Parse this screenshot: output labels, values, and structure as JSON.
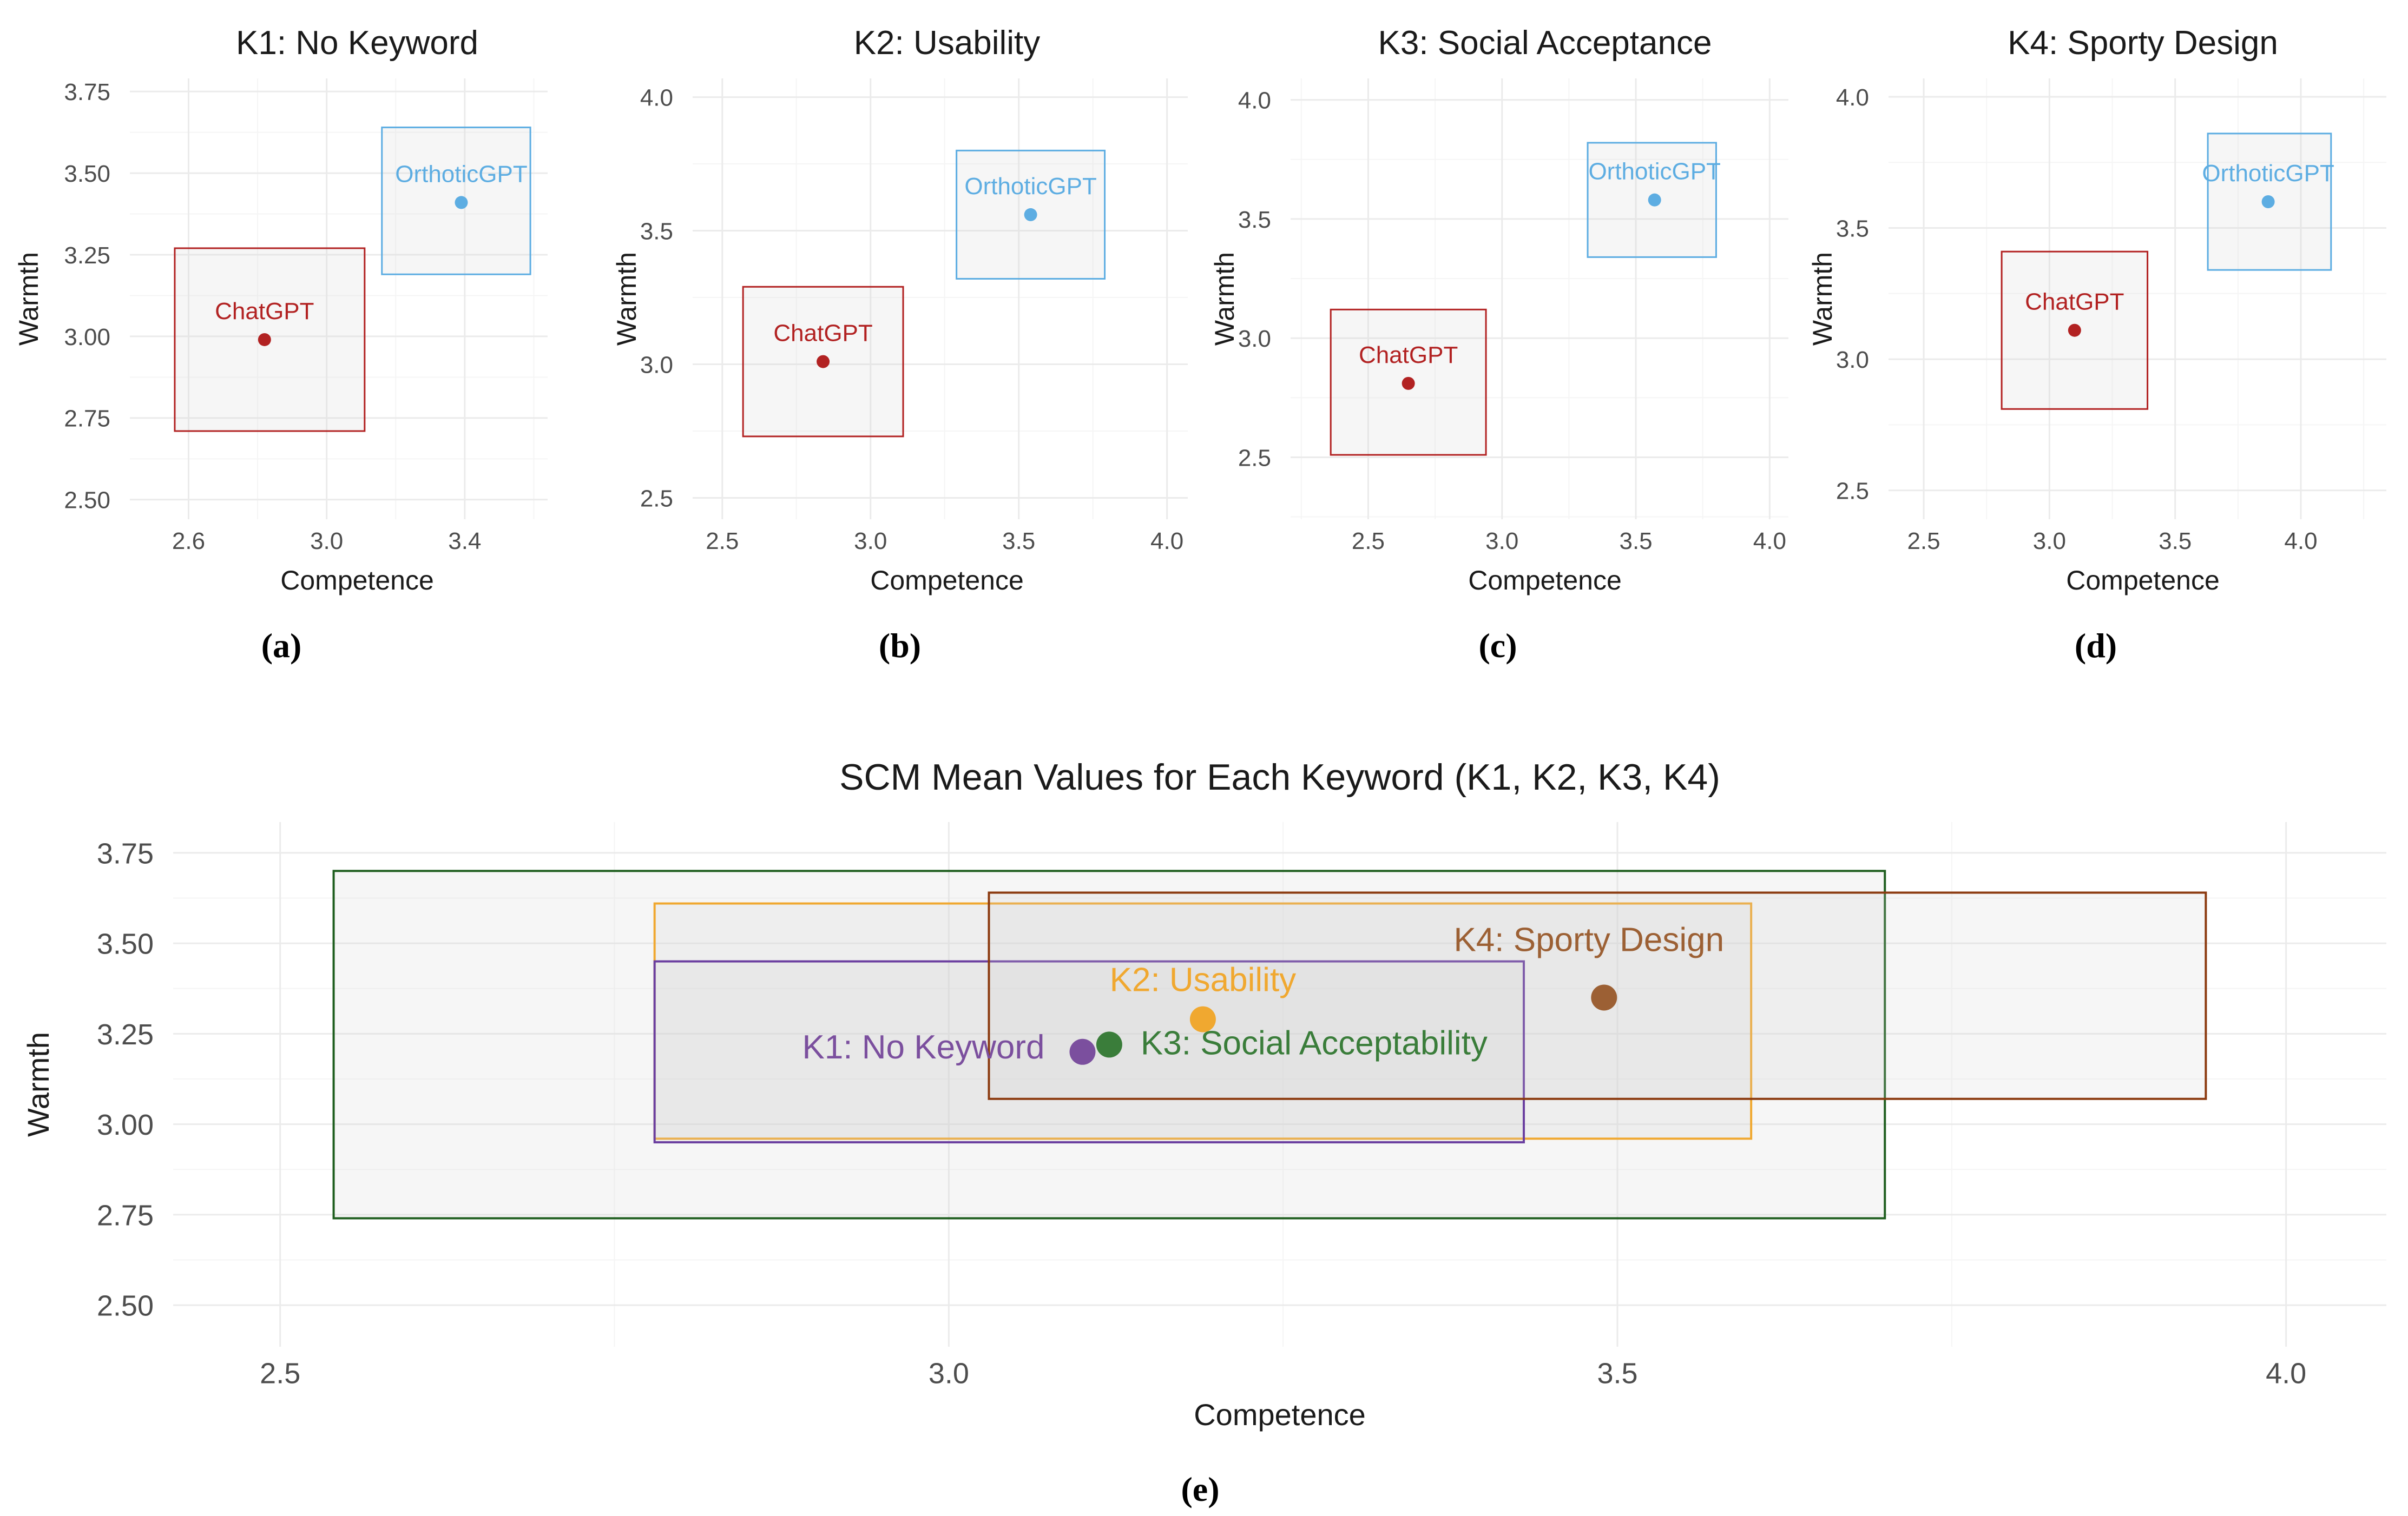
{
  "colors": {
    "chatgpt": "#b22222",
    "orthoticgpt": "#5dade2",
    "grid": "#ebebeb",
    "grid_minor": "#f5f5f5",
    "box_fill": "#d3d3d3",
    "axis_text": "#4d4d4d",
    "title_text": "#1a1a1a"
  },
  "chart_data": [
    {
      "panel_label": "(a)",
      "type": "scatter",
      "title": "K1: No Keyword",
      "xlabel": "Competence",
      "ylabel": "Warmth",
      "xlim": [
        2.43,
        3.64
      ],
      "ylim": [
        2.44,
        3.79
      ],
      "xticks": [
        2.6,
        3.0,
        3.4
      ],
      "xtick_labels": [
        "2.6",
        "3.0",
        "3.4"
      ],
      "yticks": [
        2.5,
        2.75,
        3.0,
        3.25,
        3.5,
        3.75
      ],
      "ytick_labels": [
        "2.50",
        "2.75",
        "3.00",
        "3.25",
        "3.50",
        "3.75"
      ],
      "points": [
        {
          "name": "ChatGPT",
          "x": 2.82,
          "y": 2.99,
          "box": {
            "x0": 2.56,
            "x1": 3.11,
            "y0": 2.71,
            "y1": 3.27
          },
          "color": "#b22222"
        },
        {
          "name": "OrthoticGPT",
          "x": 3.39,
          "y": 3.41,
          "box": {
            "x0": 3.16,
            "x1": 3.59,
            "y0": 3.19,
            "y1": 3.64
          },
          "color": "#5dade2"
        }
      ]
    },
    {
      "panel_label": "(b)",
      "type": "scatter",
      "title": "K2: Usability",
      "xlabel": "Competence",
      "ylabel": "Warmth",
      "xlim": [
        2.4,
        4.07
      ],
      "ylim": [
        2.42,
        4.07
      ],
      "xticks": [
        2.5,
        3.0,
        3.5,
        4.0
      ],
      "xtick_labels": [
        "2.5",
        "3.0",
        "3.5",
        "4.0"
      ],
      "yticks": [
        2.5,
        3.0,
        3.5,
        4.0
      ],
      "ytick_labels": [
        "2.5",
        "3.0",
        "3.5",
        "4.0"
      ],
      "points": [
        {
          "name": "ChatGPT",
          "x": 2.84,
          "y": 3.01,
          "box": {
            "x0": 2.57,
            "x1": 3.11,
            "y0": 2.73,
            "y1": 3.29
          },
          "color": "#b22222"
        },
        {
          "name": "OrthoticGPT",
          "x": 3.54,
          "y": 3.56,
          "box": {
            "x0": 3.29,
            "x1": 3.79,
            "y0": 3.32,
            "y1": 3.8
          },
          "color": "#5dade2"
        }
      ]
    },
    {
      "panel_label": "(c)",
      "type": "scatter",
      "title": "K3: Social Acceptance",
      "xlabel": "Competence",
      "ylabel": "Warmth",
      "xlim": [
        2.21,
        4.07
      ],
      "ylim": [
        2.24,
        4.09
      ],
      "xticks": [
        2.5,
        3.0,
        3.5,
        4.0
      ],
      "xtick_labels": [
        "2.5",
        "3.0",
        "3.5",
        "4.0"
      ],
      "yticks": [
        2.5,
        3.0,
        3.5,
        4.0
      ],
      "ytick_labels": [
        "2.5",
        "3.0",
        "3.5",
        "4.0"
      ],
      "points": [
        {
          "name": "ChatGPT",
          "x": 2.65,
          "y": 2.81,
          "box": {
            "x0": 2.36,
            "x1": 2.94,
            "y0": 2.51,
            "y1": 3.12
          },
          "color": "#b22222"
        },
        {
          "name": "OrthoticGPT",
          "x": 3.57,
          "y": 3.58,
          "box": {
            "x0": 3.32,
            "x1": 3.8,
            "y0": 3.34,
            "y1": 3.82
          },
          "color": "#5dade2"
        }
      ]
    },
    {
      "panel_label": "(d)",
      "type": "scatter",
      "title": "K4: Sporty Design",
      "xlabel": "Competence",
      "ylabel": "Warmth",
      "xlim": [
        2.36,
        4.34
      ],
      "ylim": [
        2.39,
        4.07
      ],
      "xticks": [
        2.5,
        3.0,
        3.5,
        4.0
      ],
      "xtick_labels": [
        "2.5",
        "3.0",
        "3.5",
        "4.0"
      ],
      "yticks": [
        2.5,
        3.0,
        3.5,
        4.0
      ],
      "ytick_labels": [
        "2.5",
        "3.0",
        "3.5",
        "4.0"
      ],
      "points": [
        {
          "name": "ChatGPT",
          "x": 3.1,
          "y": 3.11,
          "box": {
            "x0": 2.81,
            "x1": 3.39,
            "y0": 2.81,
            "y1": 3.41
          },
          "color": "#b22222"
        },
        {
          "name": "OrthoticGPT",
          "x": 3.87,
          "y": 3.6,
          "box": {
            "x0": 3.63,
            "x1": 4.12,
            "y0": 3.34,
            "y1": 3.86
          },
          "color": "#5dade2"
        }
      ]
    },
    {
      "panel_label": "(e)",
      "type": "scatter",
      "title": "SCM Mean Values for Each Keyword (K1, K2, K3, K4)",
      "xlabel": "Competence",
      "ylabel": "Warmth",
      "xlim": [
        2.42,
        4.075
      ],
      "ylim": [
        2.385,
        3.835
      ],
      "xticks": [
        2.5,
        3.0,
        3.5,
        4.0
      ],
      "xtick_labels": [
        "2.5",
        "3.0",
        "3.5",
        "4.0"
      ],
      "yticks": [
        2.5,
        2.75,
        3.0,
        3.25,
        3.5,
        3.75
      ],
      "ytick_labels": [
        "2.50",
        "2.75",
        "3.00",
        "3.25",
        "3.50",
        "3.75"
      ],
      "series": [
        {
          "name": "K1: No Keyword",
          "x": 3.1,
          "y": 3.2,
          "box": {
            "x0": 2.78,
            "x1": 3.43,
            "y0": 2.95,
            "y1": 3.45
          },
          "color": "#7b4f9e"
        },
        {
          "name": "K2: Usability",
          "x": 3.19,
          "y": 3.29,
          "box": {
            "x0": 2.78,
            "x1": 3.6,
            "y0": 2.96,
            "y1": 3.61
          },
          "color": "#f0a830"
        },
        {
          "name": "K3: Social Acceptability",
          "x": 3.12,
          "y": 3.22,
          "box": {
            "x0": 2.54,
            "x1": 3.7,
            "y0": 2.74,
            "y1": 3.7
          },
          "color": "#3a7d3a"
        },
        {
          "name": "K4: Sporty Design",
          "x": 3.49,
          "y": 3.35,
          "box": {
            "x0": 3.03,
            "x1": 3.94,
            "y0": 3.07,
            "y1": 3.64
          },
          "color": "#9c6034"
        }
      ],
      "series_box_colors": [
        "#6b3fa0",
        "#f0a830",
        "#1f5e1f",
        "#8b3a0f"
      ]
    }
  ]
}
